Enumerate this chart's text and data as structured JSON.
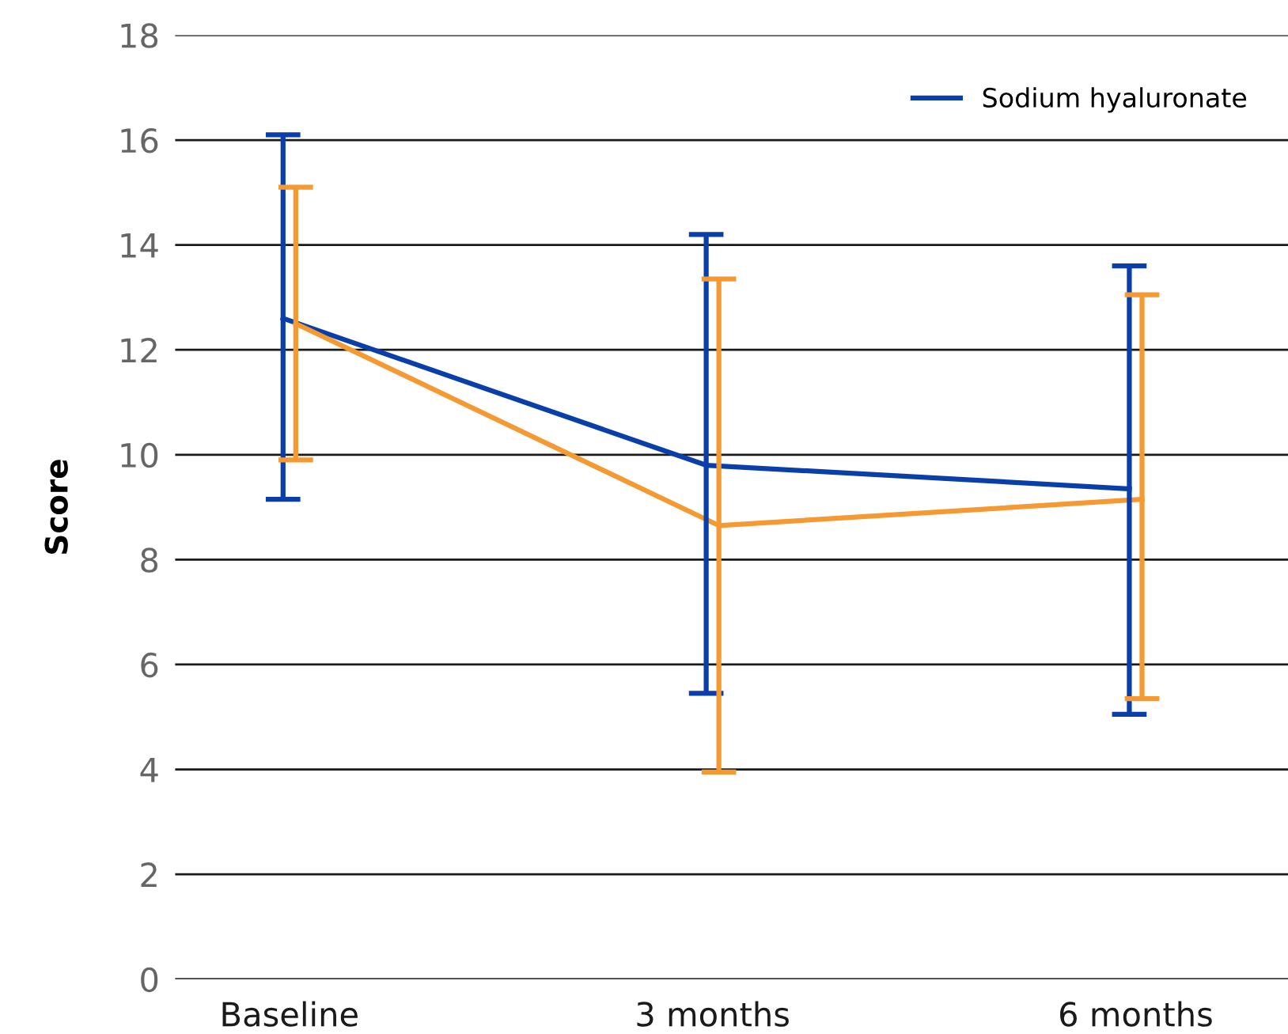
{
  "chart_data": {
    "type": "line",
    "ylabel": "Score",
    "categories": [
      "Baseline",
      "3 months",
      "6 months"
    ],
    "series": [
      {
        "name": "Sodium hyaluronate",
        "color": "#0a3faa",
        "values": [
          12.6,
          9.8,
          9.35
        ],
        "errors": [
          [
            9.15,
            16.1
          ],
          [
            5.45,
            14.2
          ],
          [
            5.05,
            13.6
          ]
        ]
      },
      {
        "color": "#f59a33",
        "values": [
          12.5,
          8.65,
          9.15
        ],
        "errors": [
          [
            9.9,
            15.1
          ],
          [
            3.95,
            13.35
          ],
          [
            5.35,
            13.05
          ]
        ]
      }
    ],
    "ylim": [
      0,
      18
    ],
    "yticks": [
      0,
      2,
      4,
      6,
      8,
      10,
      12,
      14,
      16,
      18
    ],
    "grid": "y",
    "legend": "top right",
    "marker": "none",
    "line_style": "solid"
  }
}
